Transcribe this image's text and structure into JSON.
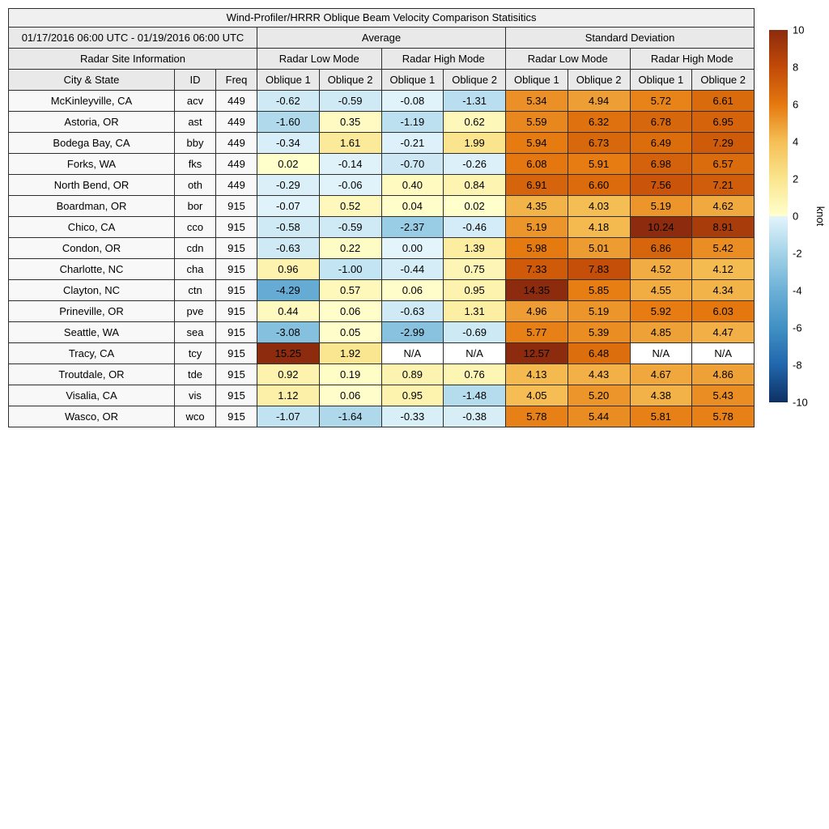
{
  "chart_data": {
    "type": "heatmap",
    "title": "Wind-Profiler/HRRR Oblique Beam Velocity Comparison Statisitics",
    "date_range": "01/17/2016 06:00 UTC - 01/19/2016 06:00 UTC",
    "group_headers": [
      "Average",
      "Standard Deviation"
    ],
    "site_info_header": "Radar Site Information",
    "mode_headers": [
      "Radar Low Mode",
      "Radar High Mode",
      "Radar Low Mode",
      "Radar High Mode"
    ],
    "column_headers": [
      "City & State",
      "ID",
      "Freq",
      "Oblique 1",
      "Oblique 2",
      "Oblique 1",
      "Oblique 2",
      "Oblique 1",
      "Oblique 2",
      "Oblique 1",
      "Oblique 2"
    ],
    "na_text": "N/A",
    "rows": [
      {
        "city": "McKinleyville, CA",
        "id": "acv",
        "freq": "449",
        "values": [
          -0.62,
          -0.59,
          -0.08,
          -1.31,
          5.34,
          4.94,
          5.72,
          6.61
        ]
      },
      {
        "city": "Astoria, OR",
        "id": "ast",
        "freq": "449",
        "values": [
          -1.6,
          0.35,
          -1.19,
          0.62,
          5.59,
          6.32,
          6.78,
          6.95
        ]
      },
      {
        "city": "Bodega Bay, CA",
        "id": "bby",
        "freq": "449",
        "values": [
          -0.34,
          1.61,
          -0.21,
          1.99,
          5.94,
          6.73,
          6.49,
          7.29
        ]
      },
      {
        "city": "Forks, WA",
        "id": "fks",
        "freq": "449",
        "values": [
          0.02,
          -0.14,
          -0.7,
          -0.26,
          6.08,
          5.91,
          6.98,
          6.57
        ]
      },
      {
        "city": "North Bend, OR",
        "id": "oth",
        "freq": "449",
        "values": [
          -0.29,
          -0.06,
          0.4,
          0.84,
          6.91,
          6.6,
          7.56,
          7.21
        ]
      },
      {
        "city": "Boardman, OR",
        "id": "bor",
        "freq": "915",
        "values": [
          -0.07,
          0.52,
          0.04,
          0.02,
          4.35,
          4.03,
          5.19,
          4.62
        ]
      },
      {
        "city": "Chico, CA",
        "id": "cco",
        "freq": "915",
        "values": [
          -0.58,
          -0.59,
          -2.37,
          -0.46,
          5.19,
          4.18,
          10.24,
          8.91
        ]
      },
      {
        "city": "Condon, OR",
        "id": "cdn",
        "freq": "915",
        "values": [
          -0.63,
          0.22,
          0.0,
          1.39,
          5.98,
          5.01,
          6.86,
          5.42
        ]
      },
      {
        "city": "Charlotte, NC",
        "id": "cha",
        "freq": "915",
        "values": [
          0.96,
          -1.0,
          -0.44,
          0.75,
          7.33,
          7.83,
          4.52,
          4.12
        ]
      },
      {
        "city": "Clayton, NC",
        "id": "ctn",
        "freq": "915",
        "values": [
          -4.29,
          0.57,
          0.06,
          0.95,
          14.35,
          5.85,
          4.55,
          4.34
        ]
      },
      {
        "city": "Prineville, OR",
        "id": "pve",
        "freq": "915",
        "values": [
          0.44,
          0.06,
          -0.63,
          1.31,
          4.96,
          5.19,
          5.92,
          6.03
        ]
      },
      {
        "city": "Seattle, WA",
        "id": "sea",
        "freq": "915",
        "values": [
          -3.08,
          0.05,
          -2.99,
          -0.69,
          5.77,
          5.39,
          4.85,
          4.47
        ]
      },
      {
        "city": "Tracy, CA",
        "id": "tcy",
        "freq": "915",
        "values": [
          15.25,
          1.92,
          null,
          null,
          12.57,
          6.48,
          null,
          null
        ]
      },
      {
        "city": "Troutdale, OR",
        "id": "tde",
        "freq": "915",
        "values": [
          0.92,
          0.19,
          0.89,
          0.76,
          4.13,
          4.43,
          4.67,
          4.86
        ]
      },
      {
        "city": "Visalia, CA",
        "id": "vis",
        "freq": "915",
        "values": [
          1.12,
          0.06,
          0.95,
          -1.48,
          4.05,
          5.2,
          4.38,
          5.43
        ]
      },
      {
        "city": "Wasco, OR",
        "id": "wco",
        "freq": "915",
        "values": [
          -1.07,
          -1.64,
          -0.33,
          -0.38,
          5.78,
          5.44,
          5.81,
          5.78
        ]
      }
    ],
    "colorbar": {
      "unit": "knot",
      "min": -10,
      "max": 10,
      "ticks": [
        10,
        8,
        6,
        4,
        2,
        0,
        -2,
        -4,
        -6,
        -8,
        -10
      ],
      "positive_stops": [
        [
          0,
          "#ffffcc"
        ],
        [
          2,
          "#fae58e"
        ],
        [
          4,
          "#f5bf55"
        ],
        [
          6,
          "#e5790f"
        ],
        [
          8,
          "#c24a08"
        ],
        [
          10,
          "#8c2b0e"
        ]
      ],
      "negative_stops": [
        [
          -10,
          "#0d3064"
        ],
        [
          -8,
          "#2166ac"
        ],
        [
          -6,
          "#4090c5"
        ],
        [
          -4,
          "#6cb0d6"
        ],
        [
          -2,
          "#a3d3e8"
        ],
        [
          0,
          "#e3f4fb"
        ]
      ],
      "na_color": "#ffffff"
    }
  }
}
